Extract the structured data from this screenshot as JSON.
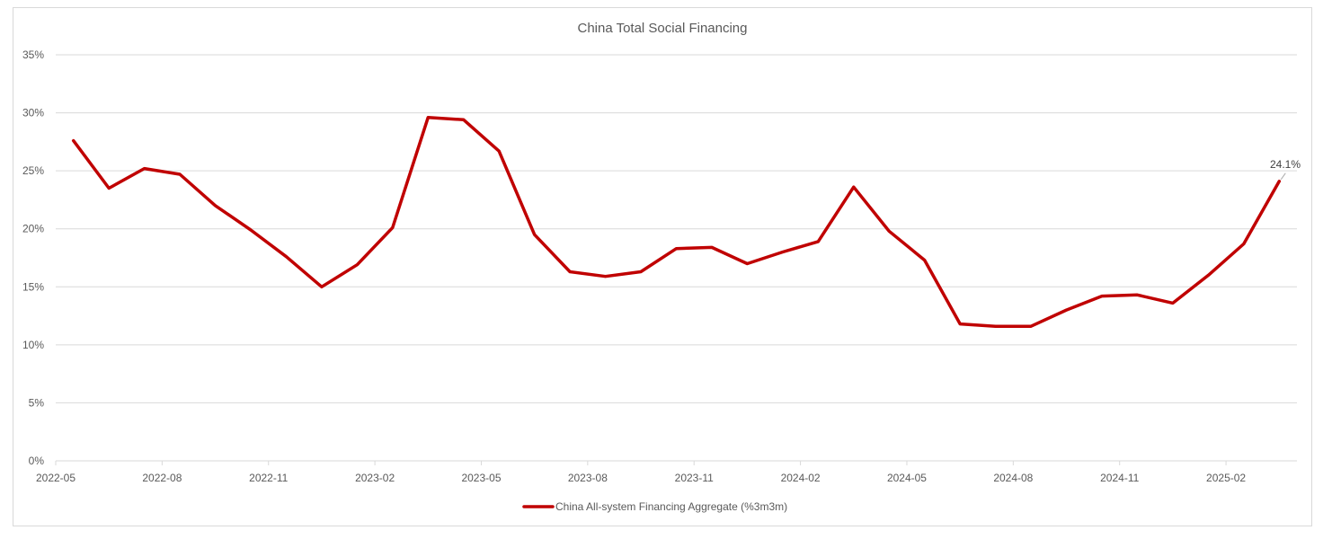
{
  "chart": {
    "title": "China Total Social Financing",
    "legend_label": "China All-system Financing Aggregate (%3m3m)",
    "last_point_label": "24.1%",
    "line_color": "#c00000",
    "y_tick_labels": [
      "0%",
      "5%",
      "10%",
      "15%",
      "20%",
      "25%",
      "30%",
      "35%"
    ],
    "x_tick_labels": [
      "2022-05",
      "2022-08",
      "2022-11",
      "2023-02",
      "2023-05",
      "2023-08",
      "2023-11",
      "2024-02",
      "2024-05",
      "2024-08",
      "2024-11",
      "2025-02"
    ]
  },
  "chart_data": {
    "type": "line",
    "title": "China Total Social Financing",
    "xlabel": "",
    "ylabel": "",
    "ylim": [
      0,
      35
    ],
    "y_ticks": [
      0,
      5,
      10,
      15,
      20,
      25,
      30,
      35
    ],
    "y_tick_format": "percent",
    "grid": true,
    "legend_position": "bottom",
    "categories": [
      "2022-05",
      "2022-06",
      "2022-07",
      "2022-08",
      "2022-09",
      "2022-10",
      "2022-11",
      "2022-12",
      "2023-01",
      "2023-02",
      "2023-03",
      "2023-04",
      "2023-05",
      "2023-06",
      "2023-07",
      "2023-08",
      "2023-09",
      "2023-10",
      "2023-11",
      "2023-12",
      "2024-01",
      "2024-02",
      "2024-03",
      "2024-04",
      "2024-05",
      "2024-06",
      "2024-07",
      "2024-08",
      "2024-09",
      "2024-10",
      "2024-11",
      "2024-12",
      "2025-01",
      "2025-02",
      "2025-03"
    ],
    "x_tick_labels": [
      "2022-05",
      "2022-08",
      "2022-11",
      "2023-02",
      "2023-05",
      "2023-08",
      "2023-11",
      "2024-02",
      "2024-05",
      "2024-08",
      "2024-11",
      "2025-02"
    ],
    "series": [
      {
        "name": "China All-system Financing Aggregate (%3m3m)",
        "color": "#c00000",
        "values": [
          27.6,
          23.5,
          25.2,
          24.7,
          22.0,
          19.9,
          17.6,
          15.0,
          16.9,
          20.1,
          29.6,
          29.4,
          26.7,
          19.5,
          16.3,
          15.9,
          16.3,
          18.3,
          18.4,
          17.0,
          18.0,
          18.9,
          23.6,
          19.8,
          17.3,
          11.8,
          11.6,
          11.6,
          13.0,
          14.2,
          14.3,
          13.6,
          16.0,
          18.7,
          24.1
        ]
      }
    ],
    "annotations": [
      {
        "category": "2025-03",
        "value": 24.1,
        "text": "24.1%"
      }
    ]
  }
}
